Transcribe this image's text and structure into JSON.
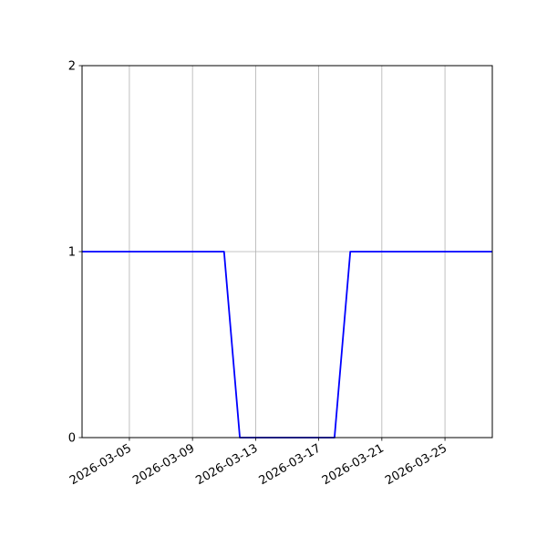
{
  "chart_data": {
    "type": "line",
    "title": "",
    "xlabel": "",
    "ylabel": "",
    "x_axis_type": "date",
    "xlim": [
      "2026-03-02",
      "2026-03-28"
    ],
    "ylim": [
      0,
      2
    ],
    "x_ticks": [
      "2026-03-05",
      "2026-03-09",
      "2026-03-13",
      "2026-03-17",
      "2026-03-21",
      "2026-03-25"
    ],
    "y_ticks": [
      0,
      1,
      2
    ],
    "grid": true,
    "series": [
      {
        "color": "#0000ff",
        "x": [
          "2026-03-02",
          "2026-03-03",
          "2026-03-04",
          "2026-03-05",
          "2026-03-06",
          "2026-03-07",
          "2026-03-08",
          "2026-03-09",
          "2026-03-10",
          "2026-03-11",
          "2026-03-12",
          "2026-03-13",
          "2026-03-14",
          "2026-03-15",
          "2026-03-16",
          "2026-03-17",
          "2026-03-18",
          "2026-03-19",
          "2026-03-20",
          "2026-03-21",
          "2026-03-22",
          "2026-03-23",
          "2026-03-24",
          "2026-03-25",
          "2026-03-26",
          "2026-03-27",
          "2026-03-28"
        ],
        "y": [
          1,
          1,
          1,
          1,
          1,
          1,
          1,
          1,
          1,
          1,
          0,
          0,
          0,
          0,
          0,
          0,
          0,
          1,
          1,
          1,
          1,
          1,
          1,
          1,
          1,
          1,
          1
        ]
      }
    ]
  }
}
